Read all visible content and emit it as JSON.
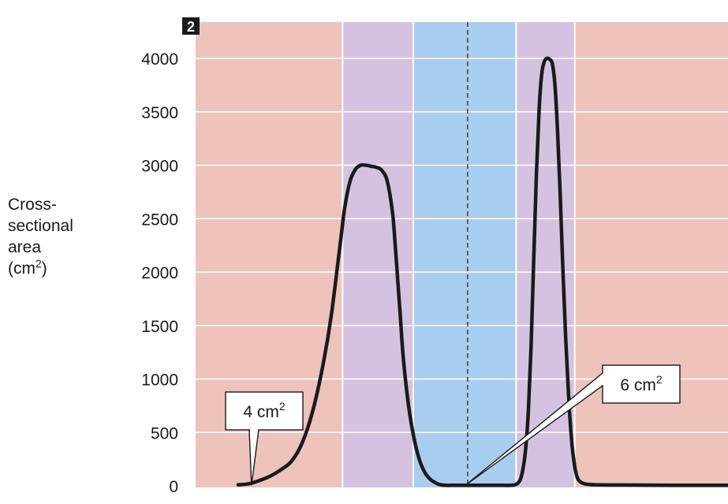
{
  "panel_number": "2",
  "ylabel": {
    "lines": [
      "Cross-",
      "sectional",
      "area"
    ],
    "unit_open": "(cm",
    "unit_sup": "2",
    "unit_close": ")"
  },
  "colors": {
    "artery_band": "#edc3bb",
    "arteriole_band": "#d5c2e0",
    "capillary_band": "#a9cdee",
    "grid": "#ffffff",
    "curve": "#1a1a1a",
    "panel_badge": "#1a1a1a"
  },
  "chart_data": {
    "type": "line",
    "yticks": [
      0,
      500,
      1000,
      1500,
      2000,
      2500,
      3000,
      3500,
      4000
    ],
    "ylim": [
      0,
      4200
    ],
    "xlim": [
      0,
      100
    ],
    "grid": true,
    "bands": [
      {
        "from": 0,
        "to": 27.6,
        "kind": "artery"
      },
      {
        "from": 27.6,
        "to": 40.9,
        "kind": "arteriole"
      },
      {
        "from": 40.9,
        "to": 60.2,
        "kind": "capillary"
      },
      {
        "from": 60.2,
        "to": 71.2,
        "kind": "arteriole"
      },
      {
        "from": 71.2,
        "to": 100,
        "kind": "artery"
      }
    ],
    "divider_x": 51.1,
    "series": [
      {
        "x": [
          8.0,
          10.0,
          12.0,
          14.0,
          16.0,
          18.0,
          20.0,
          22.0,
          24.0,
          25.5,
          27.0,
          28.0,
          29.0,
          30.0,
          31.0,
          32.0,
          33.0,
          34.0,
          35.0,
          36.0,
          37.0,
          37.5,
          38.0,
          38.5,
          39.0,
          40.0,
          41.0,
          42.0,
          43.0,
          44.0,
          45.0,
          46.0,
          47.0,
          48.0,
          50.0,
          52.0,
          54.0,
          56.0,
          58.0,
          59.0,
          60.0,
          60.5,
          61.0,
          61.5,
          62.0,
          62.5,
          63.0,
          63.5,
          64.0,
          64.5,
          65.0,
          65.5,
          66.0,
          66.5,
          67.0,
          67.5,
          68.0,
          68.5,
          69.0,
          69.5,
          70.0,
          70.5,
          71.0,
          71.5,
          72.0,
          73.0,
          75.0,
          80.0,
          90.0,
          100.0
        ],
        "y": [
          10,
          20,
          50,
          90,
          150,
          230,
          400,
          700,
          1150,
          1600,
          2200,
          2600,
          2850,
          2960,
          3000,
          3000,
          2990,
          2980,
          2950,
          2850,
          2550,
          2250,
          1900,
          1550,
          1200,
          750,
          450,
          250,
          130,
          65,
          30,
          10,
          5,
          5,
          5,
          5,
          5,
          5,
          5,
          5,
          10,
          25,
          60,
          160,
          350,
          700,
          1300,
          2100,
          2900,
          3500,
          3850,
          3970,
          4000,
          3990,
          3950,
          3750,
          3300,
          2700,
          2000,
          1400,
          900,
          500,
          250,
          110,
          50,
          20,
          10,
          8,
          6,
          6
        ]
      }
    ],
    "annotations": [
      {
        "text": "4 cm",
        "sup": "2",
        "x": 10.5,
        "y": 4
      },
      {
        "text": "6 cm",
        "sup": "2",
        "x": 50.7,
        "y": 6
      }
    ]
  }
}
